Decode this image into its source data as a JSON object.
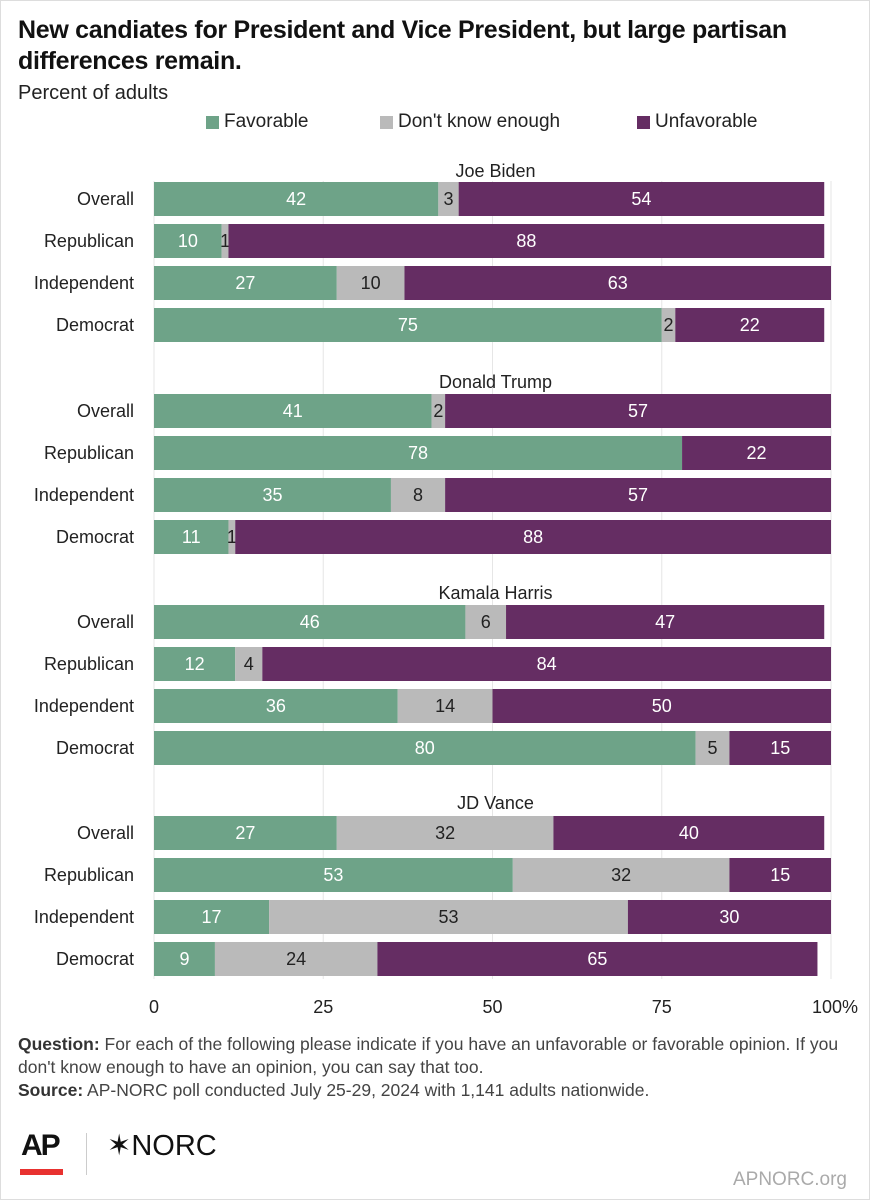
{
  "title": "New candiates for President and Vice President, but large partisan differences remain.",
  "subtitle": "Percent of adults",
  "colors": {
    "favorable": "#6ea388",
    "dont_know": "#bababa",
    "unfavorable": "#652d63"
  },
  "chart_data": {
    "type": "bar",
    "orientation": "horizontal",
    "stacked": true,
    "legend": {
      "placement": "top",
      "entries": [
        "Favorable",
        "Don't know enough",
        "Unfavorable"
      ]
    },
    "x_ticks": [
      "0",
      "25",
      "50",
      "75",
      "100%"
    ],
    "xlim": [
      0,
      100
    ],
    "grid": true,
    "categories": [
      "Overall",
      "Republican",
      "Independent",
      "Democrat"
    ],
    "groups": [
      {
        "name": "Joe Biden",
        "favorable": [
          42,
          10,
          27,
          75
        ],
        "dont_know": [
          3,
          1,
          10,
          2
        ],
        "unfavorable": [
          54,
          88,
          63,
          22
        ]
      },
      {
        "name": "Donald Trump",
        "favorable": [
          41,
          78,
          35,
          11
        ],
        "dont_know": [
          2,
          0,
          8,
          1
        ],
        "unfavorable": [
          57,
          22,
          57,
          88
        ]
      },
      {
        "name": "Kamala Harris",
        "favorable": [
          46,
          12,
          36,
          80
        ],
        "dont_know": [
          6,
          4,
          14,
          5
        ],
        "unfavorable": [
          47,
          84,
          50,
          15
        ]
      },
      {
        "name": "JD Vance",
        "favorable": [
          27,
          53,
          17,
          9
        ],
        "dont_know": [
          32,
          32,
          53,
          24
        ],
        "unfavorable": [
          40,
          15,
          30,
          65
        ]
      }
    ]
  },
  "footer": {
    "question_label": "Question:",
    "question": " For each of the following please indicate if you have an unfavorable or favorable opinion. If you don't know enough to have an opinion, you can say that too.",
    "source_label": "Source:",
    "source": " AP-NORC poll conducted July 25-29, 2024 with 1,141 adults nationwide."
  },
  "logos": {
    "ap": "AP",
    "norc": "NORC",
    "site": "APNORC.org"
  }
}
